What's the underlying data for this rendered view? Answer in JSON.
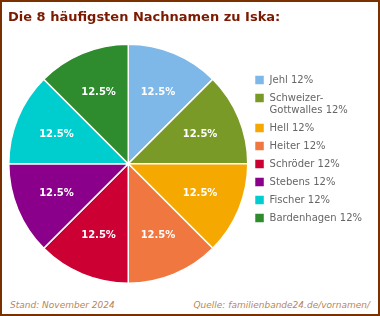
{
  "chart_data": {
    "type": "pie",
    "title": "Die 8 häufigsten Nachnamen zu Iska:",
    "categories": [
      "Jehl 12%",
      "Schweizer-\nGottwalles 12%",
      "Hell 12%",
      "Heiter 12%",
      "Schröder 12%",
      "Stebens 12%",
      "Fischer 12%",
      "Bardenhagen 12%"
    ],
    "values": [
      12.5,
      12.5,
      12.5,
      12.5,
      12.5,
      12.5,
      12.5,
      12.5
    ],
    "value_labels": [
      "12.5%",
      "12.5%",
      "12.5%",
      "12.5%",
      "12.5%",
      "12.5%",
      "12.5%",
      "12.5%"
    ],
    "data_labels": true,
    "colors": [
      "#7EB8E8",
      "#7A9A28",
      "#F5A800",
      "#F07840",
      "#CC0033",
      "#8B008B",
      "#00CDCD",
      "#2E8B2E"
    ],
    "legend": "right",
    "annotations": [
      "Stand: November 2024",
      "Quelle: familienbande24.de/vornamen/"
    ]
  }
}
